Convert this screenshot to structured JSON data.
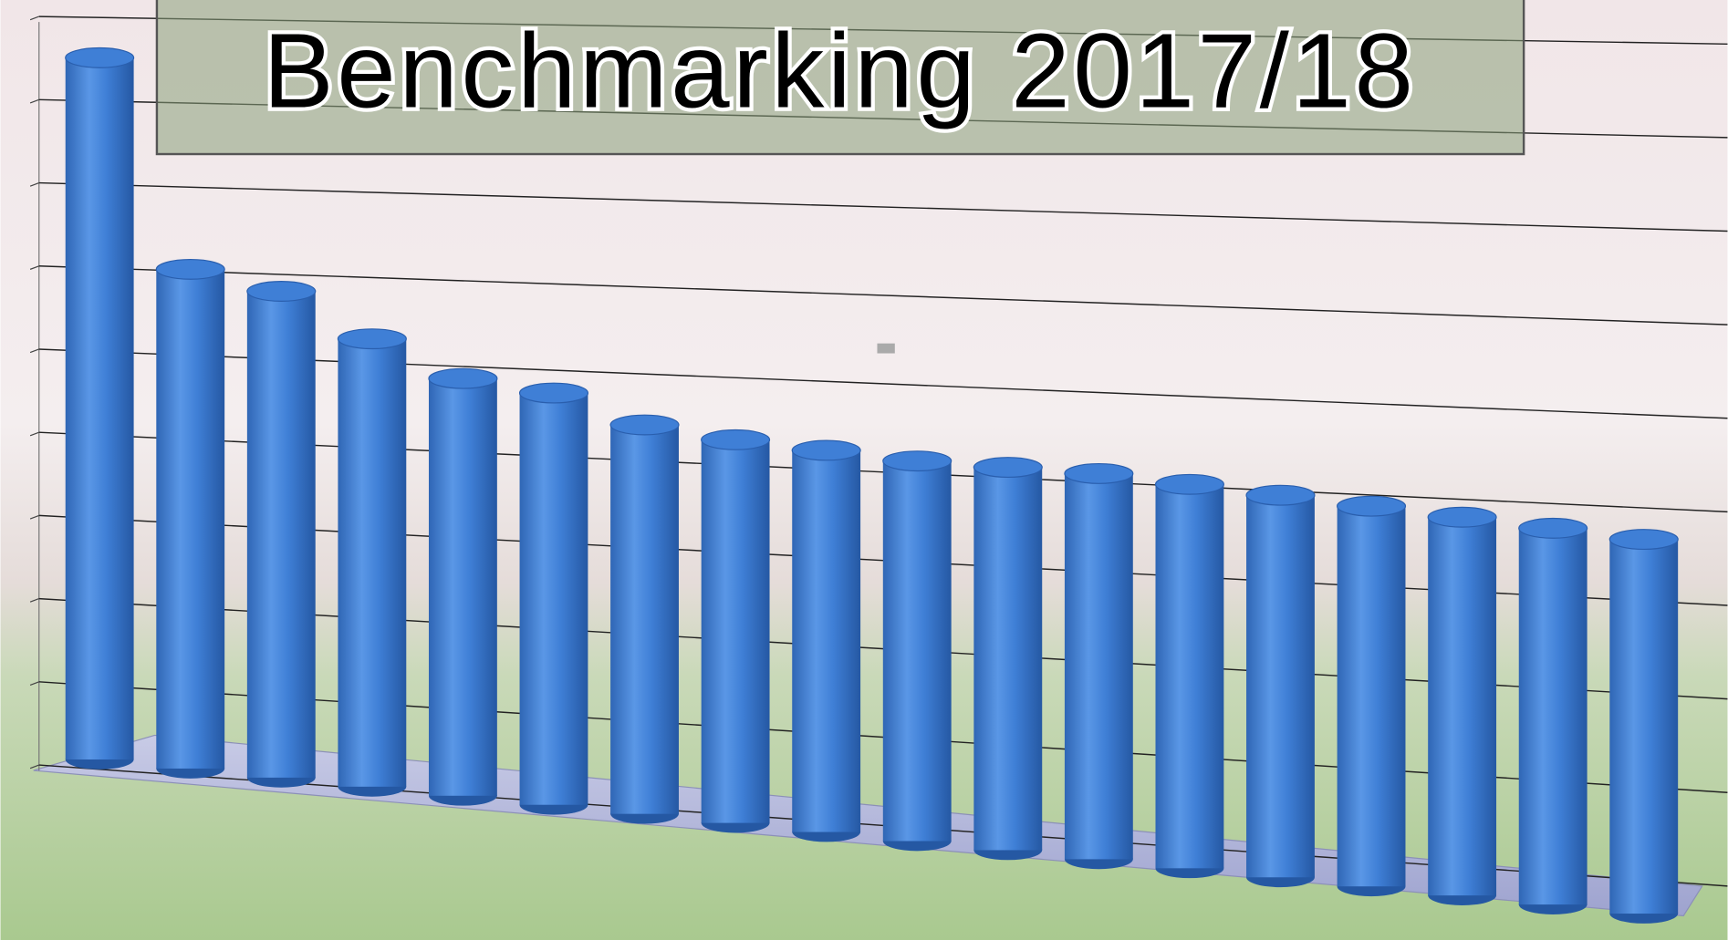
{
  "chart_data": {
    "type": "bar",
    "title": "Benchmarking 2017/18",
    "categories": [
      null,
      null,
      null,
      null,
      null,
      null,
      null,
      null,
      null,
      null,
      null,
      null,
      null,
      null,
      null,
      null,
      null,
      null
    ],
    "values": [
      8.5,
      6.0,
      5.8,
      5.3,
      4.9,
      4.8,
      4.5,
      4.4,
      4.35,
      4.3,
      4.3,
      4.3,
      4.25,
      4.2,
      4.15,
      4.1,
      4.05,
      4.0
    ],
    "color": "#3f7fd6",
    "ylim": [
      0,
      9
    ],
    "yticks": [
      0,
      1,
      2,
      3,
      4,
      5,
      6,
      7,
      8,
      9
    ],
    "grid": true
  }
}
